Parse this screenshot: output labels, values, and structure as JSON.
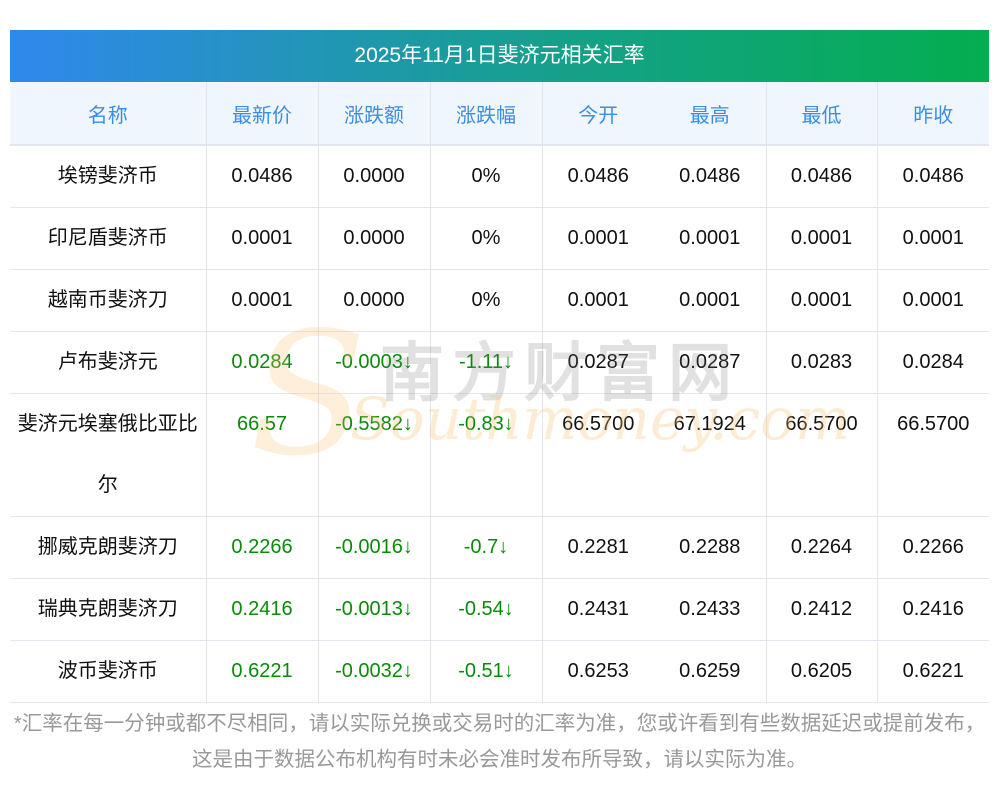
{
  "title": "2025年11月1日斐济元相关汇率",
  "headers": [
    "名称",
    "最新价",
    "涨跌额",
    "涨跌幅",
    "今开",
    "最高",
    "最低",
    "昨收"
  ],
  "rows": [
    {
      "name": "埃镑斐济币",
      "latest": "0.0486",
      "change": "0.0000",
      "pct": "0%",
      "open": "0.0486",
      "high": "0.0486",
      "low": "0.0486",
      "prev": "0.0486",
      "trend": "flat"
    },
    {
      "name": "印尼盾斐济币",
      "latest": "0.0001",
      "change": "0.0000",
      "pct": "0%",
      "open": "0.0001",
      "high": "0.0001",
      "low": "0.0001",
      "prev": "0.0001",
      "trend": "flat"
    },
    {
      "name": "越南币斐济刀",
      "latest": "0.0001",
      "change": "0.0000",
      "pct": "0%",
      "open": "0.0001",
      "high": "0.0001",
      "low": "0.0001",
      "prev": "0.0001",
      "trend": "flat"
    },
    {
      "name": "卢布斐济元",
      "latest": "0.0284",
      "change": "-0.0003↓",
      "pct": "-1.11↓",
      "open": "0.0287",
      "high": "0.0287",
      "low": "0.0283",
      "prev": "0.0284",
      "trend": "down"
    },
    {
      "name": "斐济元埃塞俄比亚比尔",
      "latest": "66.57",
      "change": "-0.5582↓",
      "pct": "-0.83↓",
      "open": "66.5700",
      "high": "67.1924",
      "low": "66.5700",
      "prev": "66.5700",
      "trend": "down"
    },
    {
      "name": "挪威克朗斐济刀",
      "latest": "0.2266",
      "change": "-0.0016↓",
      "pct": "-0.7↓",
      "open": "0.2281",
      "high": "0.2288",
      "low": "0.2264",
      "prev": "0.2266",
      "trend": "down"
    },
    {
      "name": "瑞典克朗斐济刀",
      "latest": "0.2416",
      "change": "-0.0013↓",
      "pct": "-0.54↓",
      "open": "0.2431",
      "high": "0.2433",
      "low": "0.2412",
      "prev": "0.2416",
      "trend": "down"
    },
    {
      "name": "波币斐济币",
      "latest": "0.6221",
      "change": "-0.0032↓",
      "pct": "-0.51↓",
      "open": "0.6253",
      "high": "0.6259",
      "low": "0.6205",
      "prev": "0.6221",
      "trend": "down"
    }
  ],
  "watermark": {
    "cn": "南方财富网",
    "en": "Southmoney.com"
  },
  "footnote": "*汇率在每一分钟或都不尽相同，请以实际兑换或交易时的汇率为准，您或许看到有些数据延迟或提前发布，这是由于数据公布机构有时未必会准时发布所导致，请以实际为准。",
  "colors": {
    "header_text": "#3a8ee6",
    "down": "#0a8a0a",
    "gradient_start": "#3088ee",
    "gradient_end": "#03ae4f"
  }
}
